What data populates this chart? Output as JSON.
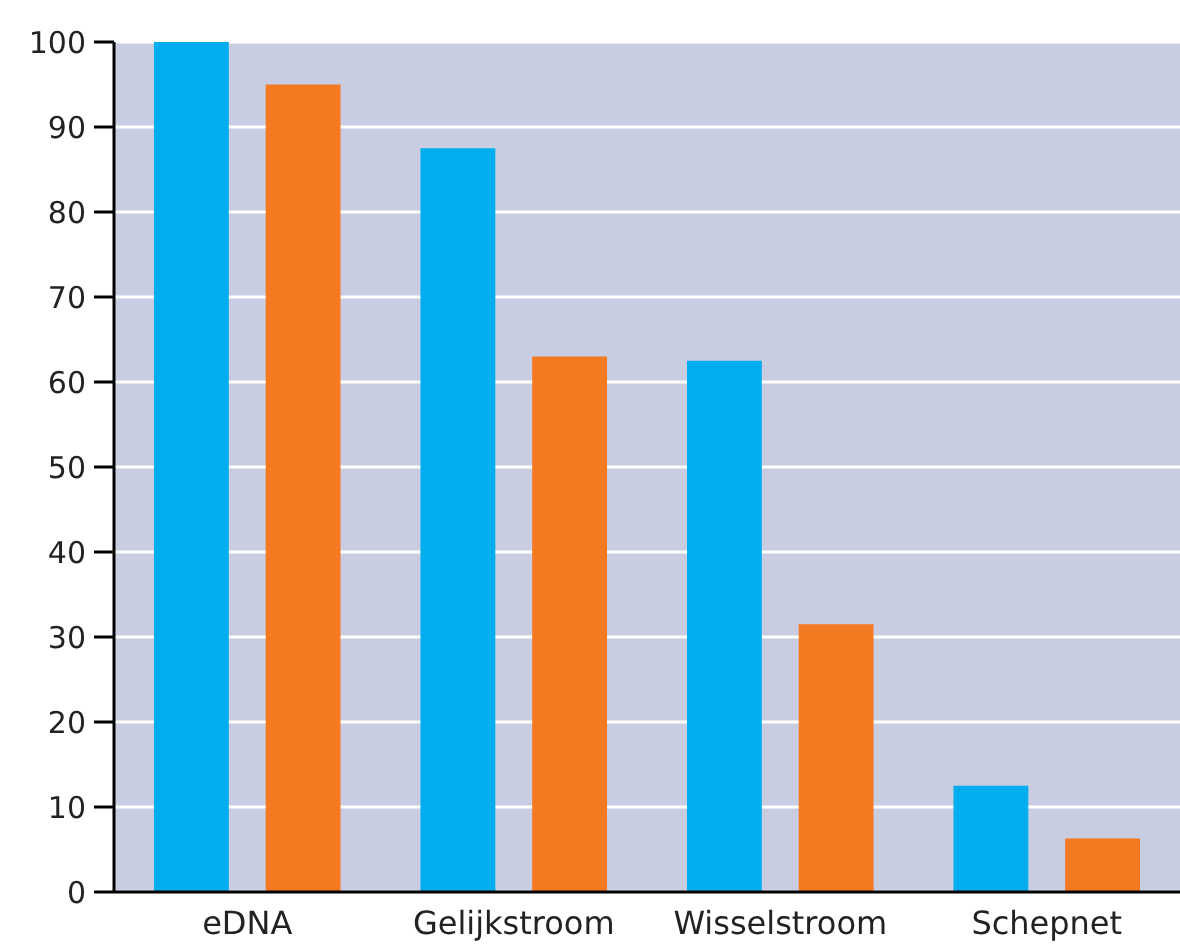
{
  "chart_data": {
    "type": "bar",
    "categories": [
      "eDNA",
      "Gelijkstroom",
      "Wisselstroom",
      "Schepnet"
    ],
    "series": [
      {
        "color": "#00aeef",
        "values": [
          100,
          87.5,
          62.5,
          12.5
        ]
      },
      {
        "color": "#f47920",
        "values": [
          95,
          63,
          31.5,
          6.3
        ]
      }
    ],
    "ylim": [
      0,
      100
    ],
    "yticks": [
      0,
      10,
      20,
      30,
      40,
      50,
      60,
      70,
      80,
      90,
      100
    ],
    "grid": "y"
  }
}
